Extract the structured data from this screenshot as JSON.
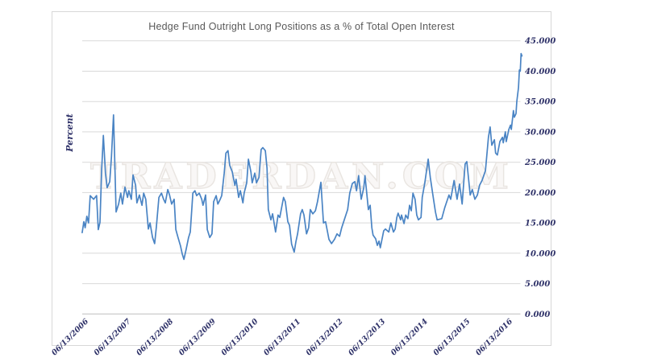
{
  "watermark": "TRADERDAN.COM",
  "colors": {
    "line": "#4a84c4",
    "grid": "#d9d9d9",
    "axis": "#bfbfbf",
    "tick_label": "#2e3168",
    "title": "#595959",
    "frame": "#d8d8d8",
    "watermark_outline": "#e9e5e1"
  },
  "chart_data": {
    "type": "line",
    "title": "Hedge Fund Outright Long Positions as a % of Total Open Interest",
    "xlabel": "",
    "ylabel": "Percent",
    "ylim": [
      0,
      45
    ],
    "y_tick_step": 5,
    "y_tick_labels": [
      "0.000",
      "5.000",
      "10.000",
      "15.000",
      "20.000",
      "25.000",
      "30.000",
      "35.000",
      "40.000",
      "45.000"
    ],
    "x_tick_labels": [
      "06/13/2006",
      "06/13/2007",
      "06/13/2008",
      "06/13/2009",
      "06/13/2010",
      "06/13/2011",
      "06/13/2012",
      "06/13/2013",
      "06/13/2014",
      "06/13/2015",
      "06/13/2016"
    ],
    "grid": "horizontal",
    "legend": "none",
    "x_unit": "decimal_year",
    "points": [
      [
        2006.41,
        13.4
      ],
      [
        2006.45,
        15.2
      ],
      [
        2006.48,
        14.2
      ],
      [
        2006.52,
        16.1
      ],
      [
        2006.56,
        15.0
      ],
      [
        2006.6,
        19.5
      ],
      [
        2006.68,
        18.9
      ],
      [
        2006.75,
        19.5
      ],
      [
        2006.79,
        13.9
      ],
      [
        2006.83,
        15.1
      ],
      [
        2006.87,
        23.8
      ],
      [
        2006.91,
        29.4
      ],
      [
        2006.96,
        23.2
      ],
      [
        2007.0,
        20.8
      ],
      [
        2007.06,
        21.8
      ],
      [
        2007.1,
        25.8
      ],
      [
        2007.15,
        32.8
      ],
      [
        2007.21,
        16.8
      ],
      [
        2007.27,
        18.1
      ],
      [
        2007.32,
        19.9
      ],
      [
        2007.36,
        18.1
      ],
      [
        2007.42,
        20.9
      ],
      [
        2007.48,
        19.2
      ],
      [
        2007.51,
        20.3
      ],
      [
        2007.57,
        18.9
      ],
      [
        2007.61,
        22.9
      ],
      [
        2007.67,
        21.2
      ],
      [
        2007.7,
        18.3
      ],
      [
        2007.76,
        19.6
      ],
      [
        2007.82,
        17.9
      ],
      [
        2007.86,
        19.9
      ],
      [
        2007.91,
        18.9
      ],
      [
        2007.97,
        14.0
      ],
      [
        2008.01,
        15.0
      ],
      [
        2008.07,
        12.6
      ],
      [
        2008.12,
        11.6
      ],
      [
        2008.16,
        14.3
      ],
      [
        2008.22,
        19.2
      ],
      [
        2008.28,
        19.9
      ],
      [
        2008.33,
        18.9
      ],
      [
        2008.37,
        18.3
      ],
      [
        2008.43,
        20.5
      ],
      [
        2008.47,
        19.6
      ],
      [
        2008.52,
        18.1
      ],
      [
        2008.58,
        18.9
      ],
      [
        2008.62,
        13.9
      ],
      [
        2008.67,
        12.6
      ],
      [
        2008.73,
        11.2
      ],
      [
        2008.77,
        9.9
      ],
      [
        2008.81,
        9.0
      ],
      [
        2008.86,
        10.6
      ],
      [
        2008.92,
        12.6
      ],
      [
        2008.96,
        13.5
      ],
      [
        2009.02,
        19.9
      ],
      [
        2009.07,
        20.3
      ],
      [
        2009.11,
        19.5
      ],
      [
        2009.17,
        19.9
      ],
      [
        2009.23,
        18.9
      ],
      [
        2009.26,
        17.9
      ],
      [
        2009.32,
        19.6
      ],
      [
        2009.36,
        13.9
      ],
      [
        2009.42,
        12.6
      ],
      [
        2009.47,
        13.2
      ],
      [
        2009.51,
        18.5
      ],
      [
        2009.57,
        19.5
      ],
      [
        2009.61,
        18.1
      ],
      [
        2009.66,
        18.8
      ],
      [
        2009.7,
        19.5
      ],
      [
        2009.76,
        23.2
      ],
      [
        2009.8,
        26.5
      ],
      [
        2009.85,
        26.9
      ],
      [
        2009.89,
        24.5
      ],
      [
        2009.95,
        23.4
      ],
      [
        2010.01,
        21.2
      ],
      [
        2010.04,
        22.2
      ],
      [
        2010.1,
        19.2
      ],
      [
        2010.14,
        20.3
      ],
      [
        2010.2,
        18.3
      ],
      [
        2010.23,
        19.9
      ],
      [
        2010.29,
        21.6
      ],
      [
        2010.33,
        25.5
      ],
      [
        2010.39,
        23.4
      ],
      [
        2010.42,
        21.6
      ],
      [
        2010.48,
        23.2
      ],
      [
        2010.52,
        21.6
      ],
      [
        2010.58,
        22.5
      ],
      [
        2010.63,
        27.1
      ],
      [
        2010.67,
        27.4
      ],
      [
        2010.73,
        26.9
      ],
      [
        2010.77,
        24.0
      ],
      [
        2010.8,
        17.2
      ],
      [
        2010.86,
        15.5
      ],
      [
        2010.9,
        16.5
      ],
      [
        2010.97,
        13.5
      ],
      [
        2011.03,
        16.3
      ],
      [
        2011.07,
        15.9
      ],
      [
        2011.16,
        19.2
      ],
      [
        2011.2,
        18.5
      ],
      [
        2011.26,
        15.2
      ],
      [
        2011.3,
        14.6
      ],
      [
        2011.35,
        11.5
      ],
      [
        2011.41,
        10.2
      ],
      [
        2011.45,
        11.9
      ],
      [
        2011.49,
        13.2
      ],
      [
        2011.56,
        16.5
      ],
      [
        2011.6,
        17.2
      ],
      [
        2011.64,
        16.3
      ],
      [
        2011.7,
        13.2
      ],
      [
        2011.75,
        14.2
      ],
      [
        2011.79,
        17.2
      ],
      [
        2011.85,
        16.5
      ],
      [
        2011.91,
        17.0
      ],
      [
        2011.96,
        18.5
      ],
      [
        2012.04,
        21.7
      ],
      [
        2012.1,
        15.0
      ],
      [
        2012.15,
        15.2
      ],
      [
        2012.23,
        12.3
      ],
      [
        2012.29,
        11.6
      ],
      [
        2012.36,
        12.3
      ],
      [
        2012.42,
        13.2
      ],
      [
        2012.48,
        12.8
      ],
      [
        2012.53,
        14.2
      ],
      [
        2012.59,
        15.5
      ],
      [
        2012.67,
        17.2
      ],
      [
        2012.72,
        19.9
      ],
      [
        2012.78,
        21.5
      ],
      [
        2012.84,
        21.8
      ],
      [
        2012.88,
        20.3
      ],
      [
        2012.93,
        22.8
      ],
      [
        2012.99,
        18.9
      ],
      [
        2013.05,
        20.8
      ],
      [
        2013.08,
        22.8
      ],
      [
        2013.16,
        17.2
      ],
      [
        2013.2,
        17.9
      ],
      [
        2013.24,
        14.2
      ],
      [
        2013.27,
        13.0
      ],
      [
        2013.33,
        12.4
      ],
      [
        2013.37,
        11.3
      ],
      [
        2013.41,
        12.0
      ],
      [
        2013.44,
        10.9
      ],
      [
        2013.52,
        13.7
      ],
      [
        2013.56,
        14.0
      ],
      [
        2013.64,
        13.5
      ],
      [
        2013.69,
        15.0
      ],
      [
        2013.75,
        13.5
      ],
      [
        2013.79,
        14.0
      ],
      [
        2013.83,
        15.9
      ],
      [
        2013.86,
        16.6
      ],
      [
        2013.92,
        15.5
      ],
      [
        2013.94,
        16.3
      ],
      [
        2014.0,
        14.9
      ],
      [
        2014.04,
        16.3
      ],
      [
        2014.09,
        15.7
      ],
      [
        2014.13,
        17.9
      ],
      [
        2014.17,
        17.0
      ],
      [
        2014.21,
        19.9
      ],
      [
        2014.26,
        18.9
      ],
      [
        2014.3,
        16.3
      ],
      [
        2014.34,
        15.5
      ],
      [
        2014.4,
        15.9
      ],
      [
        2014.43,
        19.2
      ],
      [
        2014.49,
        21.6
      ],
      [
        2014.57,
        25.5
      ],
      [
        2014.62,
        22.5
      ],
      [
        2014.68,
        19.6
      ],
      [
        2014.74,
        16.8
      ],
      [
        2014.78,
        15.5
      ],
      [
        2014.89,
        15.7
      ],
      [
        2014.96,
        17.5
      ],
      [
        2015.06,
        19.6
      ],
      [
        2015.1,
        18.9
      ],
      [
        2015.18,
        22.0
      ],
      [
        2015.25,
        18.9
      ],
      [
        2015.31,
        21.4
      ],
      [
        2015.37,
        18.1
      ],
      [
        2015.44,
        24.7
      ],
      [
        2015.48,
        25.1
      ],
      [
        2015.56,
        19.6
      ],
      [
        2015.61,
        20.5
      ],
      [
        2015.67,
        18.9
      ],
      [
        2015.73,
        19.6
      ],
      [
        2015.78,
        21.2
      ],
      [
        2015.84,
        22.0
      ],
      [
        2015.92,
        23.6
      ],
      [
        2015.99,
        29.1
      ],
      [
        2016.03,
        30.8
      ],
      [
        2016.07,
        27.8
      ],
      [
        2016.13,
        28.7
      ],
      [
        2016.16,
        26.5
      ],
      [
        2016.2,
        26.2
      ],
      [
        2016.26,
        28.4
      ],
      [
        2016.32,
        29.1
      ],
      [
        2016.34,
        28.2
      ],
      [
        2016.39,
        30.0
      ],
      [
        2016.41,
        28.4
      ],
      [
        2016.47,
        30.4
      ],
      [
        2016.51,
        31.1
      ],
      [
        2016.53,
        30.4
      ],
      [
        2016.58,
        33.5
      ],
      [
        2016.6,
        32.4
      ],
      [
        2016.64,
        33.0
      ],
      [
        2016.66,
        35.0
      ],
      [
        2016.7,
        37.3
      ],
      [
        2016.72,
        40.2
      ],
      [
        2016.74,
        40.0
      ],
      [
        2016.76,
        42.9
      ],
      [
        2016.78,
        42.5
      ]
    ]
  }
}
